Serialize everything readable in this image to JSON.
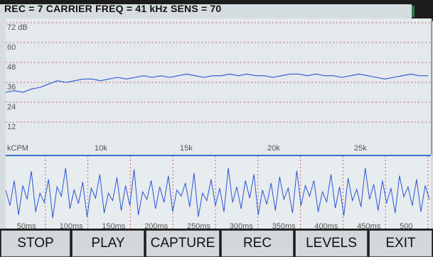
{
  "header": {
    "status_line": "REC = 7  CARRIER FREQ = 41 kHz  SENS = 70"
  },
  "levels_chart": {
    "y_ticks": [
      "72 dB",
      "60",
      "48",
      "36",
      "24",
      "12"
    ],
    "x_unit_label": "kCPM",
    "x_ticks": [
      "10k",
      "15k",
      "20k",
      "25k"
    ]
  },
  "spectrum_chart": {
    "time_ticks": [
      "50ms",
      "100ms",
      "150ms",
      "200ms",
      "250ms",
      "300ms",
      "350ms",
      "400ms",
      "450ms",
      "500"
    ]
  },
  "buttons": {
    "stop": "STOP",
    "play": "PLAY",
    "capture": "CAPTURE",
    "rec": "REC",
    "levels": "LEVELS",
    "exit": "EXIT"
  },
  "colors": {
    "trace": "#2a55d4",
    "grid": "#c86464",
    "background": "#e3e9ec"
  },
  "chart_data": [
    {
      "type": "line",
      "title": "",
      "xlabel": "kCPM",
      "ylabel": "dB",
      "ylim": [
        0,
        72
      ],
      "x_tick_labels": [
        "10k",
        "15k",
        "20k",
        "25k"
      ],
      "series": [
        {
          "values": [
            30,
            31,
            30,
            32,
            33,
            35,
            37,
            36,
            37,
            38,
            38,
            37,
            38,
            39,
            38,
            39,
            40,
            39,
            40,
            39,
            40,
            41,
            40,
            39,
            40,
            40,
            41,
            40,
            41,
            40,
            40,
            39,
            40,
            41,
            41,
            40,
            41,
            40,
            40,
            39,
            40,
            41,
            40,
            39,
            38,
            39,
            40,
            41,
            40,
            40
          ]
        }
      ]
    },
    {
      "type": "line",
      "title": "",
      "xlabel": "ms",
      "ylabel": "",
      "x_tick_labels": [
        "50ms",
        "100ms",
        "150ms",
        "200ms",
        "250ms",
        "300ms",
        "350ms",
        "400ms",
        "450ms",
        "500"
      ],
      "series": [
        {
          "values": [
            0.55,
            0.3,
            0.7,
            0.15,
            0.62,
            0.4,
            0.85,
            0.2,
            0.5,
            0.35,
            0.72,
            0.1,
            0.6,
            0.45,
            0.9,
            0.25,
            0.55,
            0.33,
            0.68,
            0.12,
            0.58,
            0.42,
            0.8,
            0.18,
            0.5,
            0.38,
            0.75,
            0.22,
            0.62,
            0.3,
            0.88,
            0.15,
            0.52,
            0.4,
            0.7,
            0.25,
            0.6,
            0.35,
            0.78,
            0.2,
            0.55,
            0.45,
            0.66,
            0.28,
            0.82,
            0.12,
            0.5,
            0.38,
            0.72,
            0.3,
            0.58,
            0.2,
            0.9,
            0.35,
            0.6,
            0.25,
            0.7,
            0.42,
            0.8,
            0.15,
            0.55,
            0.32,
            0.66,
            0.22,
            0.76,
            0.4,
            0.58,
            0.18,
            0.86,
            0.3,
            0.62,
            0.45,
            0.7,
            0.2,
            0.52,
            0.36,
            0.8,
            0.26,
            0.6,
            0.14,
            0.74,
            0.38,
            0.56,
            0.28,
            0.9,
            0.4,
            0.64,
            0.22,
            0.7,
            0.34,
            0.58,
            0.18,
            0.78,
            0.44,
            0.6,
            0.3,
            0.72,
            0.2,
            0.62,
            0.4
          ]
        }
      ]
    }
  ]
}
